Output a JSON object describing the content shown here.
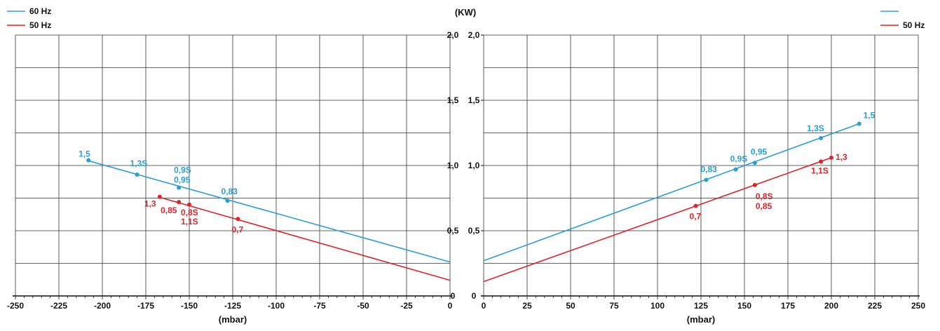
{
  "unit_label": "(KW)",
  "colors": {
    "hz60": "#2a9fd6",
    "hz50": "#d9262b",
    "grid": "#333333"
  },
  "legend_left": [
    {
      "label": "60 Hz",
      "color": "#2a9fd6"
    },
    {
      "label": "50 Hz",
      "color": "#d9262b"
    }
  ],
  "legend_right": [
    {
      "label": "",
      "color": "#2a9fd6"
    },
    {
      "label": "50 Hz",
      "color": "#d9262b"
    }
  ],
  "chart_data": [
    {
      "type": "line",
      "xlabel": "(mbar)",
      "ylabel": "(KW)",
      "xlim": [
        -250,
        0
      ],
      "ylim": [
        0,
        2.0
      ],
      "x_ticks": [
        "-250",
        "-225",
        "-200",
        "-175",
        "-150",
        "-125",
        "-100",
        "-75",
        "-50",
        "-25",
        "0"
      ],
      "y_ticks": [
        "0",
        "0,5",
        "1,0",
        "1,5",
        "2,0"
      ],
      "grid": true,
      "legend": "top-left",
      "series": [
        {
          "name": "60 Hz",
          "line": [
            [
              -209,
              1.04
            ],
            [
              0,
              0.26
            ]
          ],
          "points": [
            {
              "x": -208,
              "y": 1.04,
              "labels": [
                "1,5"
              ]
            },
            {
              "x": -180,
              "y": 0.93,
              "labels": [
                "1,3S"
              ]
            },
            {
              "x": -156,
              "y": 0.83,
              "labels": [
                "0,9S",
                "0,95"
              ]
            },
            {
              "x": -128,
              "y": 0.73,
              "labels": [
                "0,83"
              ]
            }
          ]
        },
        {
          "name": "50 Hz",
          "line": [
            [
              -168,
              0.76
            ],
            [
              0,
              0.12
            ]
          ],
          "points": [
            {
              "x": -167,
              "y": 0.76,
              "labels": [
                "1,3"
              ]
            },
            {
              "x": -156,
              "y": 0.72,
              "labels": [
                "0,85"
              ]
            },
            {
              "x": -150,
              "y": 0.7,
              "labels": [
                "0,8S",
                "1,1S"
              ]
            },
            {
              "x": -122,
              "y": 0.59,
              "labels": [
                "0,7"
              ]
            }
          ]
        }
      ]
    },
    {
      "type": "line",
      "xlabel": "(mbar)",
      "ylabel": "(KW)",
      "xlim": [
        0,
        250
      ],
      "ylim": [
        0,
        2.0
      ],
      "x_ticks": [
        "0",
        "25",
        "50",
        "75",
        "100",
        "125",
        "150",
        "175",
        "200",
        "225",
        "250"
      ],
      "y_ticks": [
        "0",
        "0,5",
        "1,0",
        "1,5",
        "2,0"
      ],
      "grid": true,
      "legend": "top-right",
      "series": [
        {
          "line": [
            [
              0,
              0.27
            ],
            [
              216,
              1.32
            ]
          ],
          "points": [
            {
              "x": 128,
              "y": 0.89,
              "labels": [
                "0,83"
              ]
            },
            {
              "x": 145,
              "y": 0.97,
              "labels": [
                "0,9S"
              ]
            },
            {
              "x": 156,
              "y": 1.02,
              "labels": [
                "0,95"
              ]
            },
            {
              "x": 194,
              "y": 1.21,
              "labels": [
                "1,3S"
              ]
            },
            {
              "x": 216,
              "y": 1.32,
              "labels": [
                "1,5"
              ]
            }
          ]
        },
        {
          "name": "50 Hz",
          "line": [
            [
              0,
              0.11
            ],
            [
              200,
              1.06
            ]
          ],
          "points": [
            {
              "x": 122,
              "y": 0.69,
              "labels": [
                "0,7"
              ]
            },
            {
              "x": 156,
              "y": 0.85,
              "labels": [
                "0,8S",
                "0,85"
              ]
            },
            {
              "x": 194,
              "y": 1.03,
              "labels": [
                "1,1S"
              ]
            },
            {
              "x": 200,
              "y": 1.06,
              "labels": [
                "1,3"
              ]
            }
          ]
        }
      ]
    }
  ]
}
